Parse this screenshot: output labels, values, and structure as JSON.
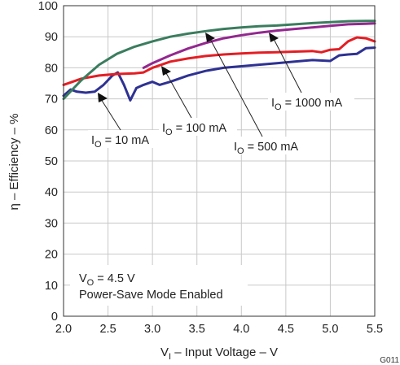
{
  "chart_data": {
    "type": "line",
    "title": "",
    "xlabel": {
      "main": "V",
      "sub": "I",
      "rest": " – Input Voltage – V"
    },
    "ylabel": "η – Efficiency – %",
    "xlim": [
      2.0,
      5.5
    ],
    "ylim": [
      0,
      100
    ],
    "xticks": [
      2.0,
      2.5,
      3.0,
      3.5,
      4.0,
      4.5,
      5.0,
      5.5
    ],
    "xtick_labels": [
      "2.0",
      "2.5",
      "3.0",
      "3.5",
      "4.0",
      "4.5",
      "5.0",
      "5.5"
    ],
    "yticks": [
      0,
      10,
      20,
      30,
      40,
      50,
      60,
      70,
      80,
      90,
      100
    ],
    "ytick_labels": [
      "0",
      "10",
      "20",
      "30",
      "40",
      "50",
      "60",
      "70",
      "80",
      "90",
      "100"
    ],
    "grid": true,
    "series": [
      {
        "name": "IO = 10 mA",
        "color": "#2e3192",
        "x": [
          2.0,
          2.08,
          2.15,
          2.25,
          2.35,
          2.45,
          2.55,
          2.61,
          2.68,
          2.75,
          2.82,
          2.9,
          3.0,
          3.08,
          3.2,
          3.4,
          3.6,
          3.8,
          4.0,
          4.2,
          4.4,
          4.6,
          4.8,
          5.0,
          5.1,
          5.2,
          5.3,
          5.4,
          5.5
        ],
        "y": [
          71,
          73,
          72.3,
          72,
          72.3,
          74.5,
          77.5,
          78.5,
          74.5,
          69.5,
          73.5,
          74.5,
          75.5,
          74.5,
          75.5,
          77.5,
          79,
          80,
          80.5,
          81,
          81.5,
          82,
          82.5,
          82.2,
          84,
          84.3,
          84.5,
          86.3,
          86.5
        ]
      },
      {
        "name": "IO = 100 mA",
        "color": "#e31e24",
        "x": [
          2.0,
          2.2,
          2.4,
          2.6,
          2.8,
          2.9,
          3.0,
          3.2,
          3.4,
          3.6,
          3.8,
          4.0,
          4.2,
          4.4,
          4.6,
          4.8,
          4.9,
          5.0,
          5.1,
          5.2,
          5.3,
          5.4,
          5.5
        ],
        "y": [
          74.5,
          76.5,
          77.5,
          78,
          78.2,
          78.5,
          80,
          82,
          83,
          83.8,
          84.3,
          84.6,
          84.9,
          85,
          85.2,
          85.4,
          85,
          85.8,
          86,
          88.5,
          89.8,
          89.5,
          88.5
        ]
      },
      {
        "name": "IO = 500 mA",
        "color": "#93278f",
        "x": [
          2.9,
          3.0,
          3.2,
          3.4,
          3.6,
          3.8,
          4.0,
          4.2,
          4.4,
          4.6,
          4.8,
          5.0,
          5.2,
          5.4,
          5.5
        ],
        "y": [
          80,
          81.5,
          84,
          86.2,
          88,
          89.5,
          90.5,
          91.3,
          92,
          92.5,
          93,
          93.5,
          94,
          94.2,
          94.3
        ]
      },
      {
        "name": "IO = 1000 mA",
        "color": "#3a7d5e",
        "x": [
          2.0,
          2.1,
          2.2,
          2.4,
          2.6,
          2.8,
          3.0,
          3.2,
          3.4,
          3.6,
          3.8,
          4.0,
          4.2,
          4.4,
          4.6,
          4.8,
          5.0,
          5.2,
          5.4,
          5.5
        ],
        "y": [
          70,
          73,
          76,
          81,
          84.5,
          86.8,
          88.5,
          90,
          91,
          91.8,
          92.5,
          93,
          93.4,
          93.6,
          94,
          94.4,
          94.7,
          95,
          95.1,
          95.1
        ]
      }
    ],
    "annotations": [
      {
        "main": "I",
        "sub": "O",
        "rest": " = 10 mA"
      },
      {
        "main": "I",
        "sub": "O",
        "rest": " = 100 mA"
      },
      {
        "main": "I",
        "sub": "O",
        "rest": " = 500 mA"
      },
      {
        "main": "I",
        "sub": "O",
        "rest": " = 1000 mA"
      }
    ],
    "conditions": {
      "line1": {
        "main": "V",
        "sub": "O",
        "rest": " = 4.5 V"
      },
      "line2": "Power-Save Mode Enabled"
    },
    "figure_tag": "G011"
  }
}
